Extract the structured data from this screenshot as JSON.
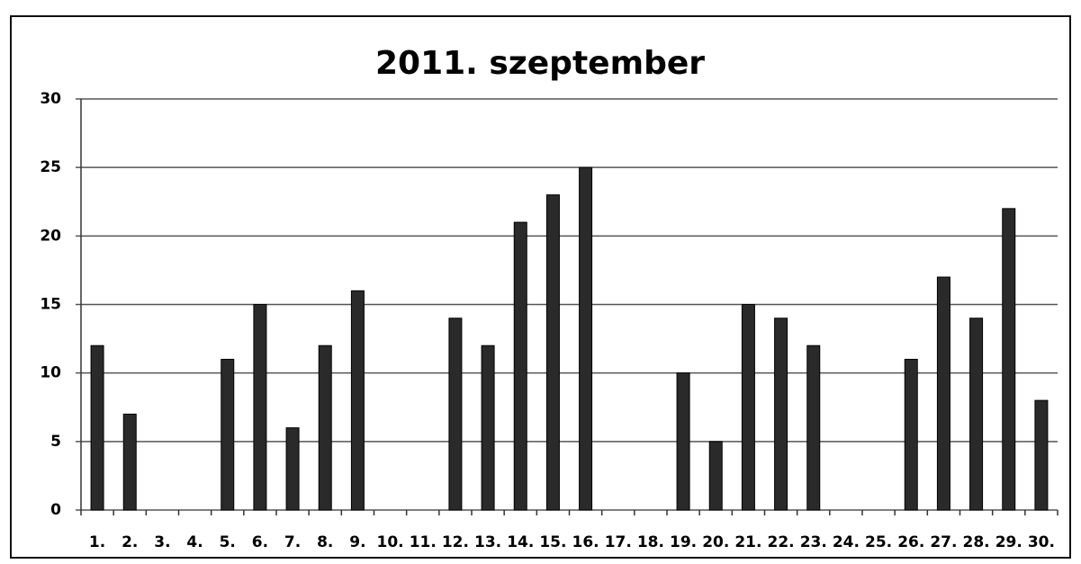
{
  "chart_data": {
    "type": "bar",
    "title": "2011. szeptember",
    "categories": [
      "1.",
      "2.",
      "3.",
      "4.",
      "5.",
      "6.",
      "7.",
      "8.",
      "9.",
      "10.",
      "11.",
      "12.",
      "13.",
      "14.",
      "15.",
      "16.",
      "17.",
      "18.",
      "19.",
      "20.",
      "21.",
      "22.",
      "23.",
      "24.",
      "25.",
      "26.",
      "27.",
      "28.",
      "29.",
      "30."
    ],
    "values": [
      12,
      7,
      0,
      0,
      11,
      15,
      6,
      12,
      16,
      0,
      0,
      14,
      12,
      21,
      23,
      25,
      0,
      0,
      10,
      5,
      15,
      14,
      12,
      0,
      0,
      11,
      17,
      14,
      22,
      8
    ],
    "color": "#2a2a2a",
    "ylim": [
      0,
      30
    ],
    "yticks": [
      0,
      5,
      10,
      15,
      20,
      25,
      30
    ],
    "grid": true
  }
}
